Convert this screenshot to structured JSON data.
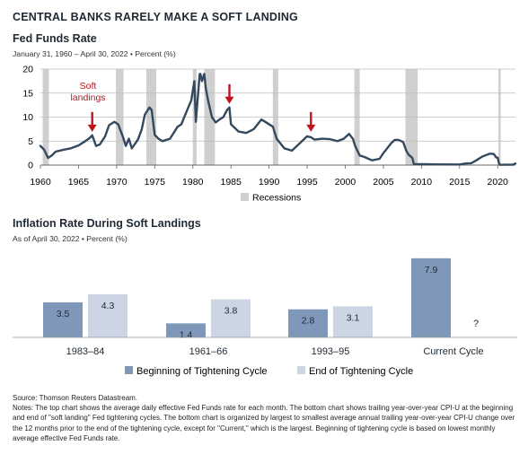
{
  "header": {
    "title": "CENTRAL BANKS RARELY MAKE A SOFT LANDING"
  },
  "colors": {
    "line": "#34495e",
    "recession": "#cfcfcf",
    "arrow": "#c0141c",
    "bar_begin": "#7f97b8",
    "bar_end": "#ccd5e3",
    "text": "#1f2933"
  },
  "chart_data": [
    {
      "type": "line",
      "title": "Fed Funds Rate",
      "subtitle": "January 31, 1960 – April 30, 2022 • Percent (%)",
      "xlim": [
        1960,
        2022.33
      ],
      "ylim": [
        0,
        20
      ],
      "x_ticks": [
        "1960",
        "1965",
        "1970",
        "1975",
        "1980",
        "1985",
        "1990",
        "1995",
        "2000",
        "2005",
        "2010",
        "2015",
        "2020"
      ],
      "y_ticks": [
        "0",
        "5",
        "10",
        "15",
        "20"
      ],
      "legend": {
        "label": "Recessions",
        "placement": "bottom-center"
      },
      "recessions": [
        [
          1960.3,
          1961.1
        ],
        [
          1969.9,
          1970.9
        ],
        [
          1973.9,
          1975.2
        ],
        [
          1980.0,
          1980.5
        ],
        [
          1981.5,
          1982.9
        ],
        [
          1990.5,
          1991.2
        ],
        [
          2001.2,
          2001.9
        ],
        [
          2007.9,
          2009.5
        ],
        [
          2020.1,
          2020.4
        ]
      ],
      "annotation": {
        "text_lines": [
          "Soft",
          "landings"
        ],
        "arrows_at": [
          [
            1966.8,
            6.2
          ],
          [
            1984.8,
            12.0
          ],
          [
            1995.5,
            6.2
          ]
        ]
      },
      "series": [
        {
          "x": [
            1960,
            1960.5,
            1961,
            1961.5,
            1962,
            1963,
            1964,
            1965,
            1966,
            1966.5,
            1966.8,
            1967.3,
            1967.8,
            1968.5,
            1969,
            1969.7,
            1970.2,
            1970.8,
            1971.2,
            1971.6,
            1972,
            1972.8,
            1973.3,
            1973.7,
            1974.3,
            1974.6,
            1975,
            1975.5,
            1976,
            1977,
            1978,
            1978.5,
            1979,
            1979.8,
            1980.2,
            1980.4,
            1980.6,
            1980.9,
            1981,
            1981.2,
            1981.5,
            1981.7,
            1982,
            1982.5,
            1983,
            1983.5,
            1984,
            1984.5,
            1984.8,
            1985,
            1986,
            1987,
            1988,
            1989,
            1989.5,
            1990.5,
            1991,
            1992,
            1993,
            1994,
            1995,
            1995.5,
            1996,
            1997,
            1998,
            1999,
            1999.8,
            2000.5,
            2001,
            2001.3,
            2001.9,
            2002.5,
            2003.5,
            2004.5,
            2005,
            2005.5,
            2006,
            2006.5,
            2007,
            2007.6,
            2008,
            2008.3,
            2008.8,
            2009,
            2010,
            2012,
            2015,
            2015.9,
            2016.5,
            2017,
            2018,
            2019,
            2019.5,
            2019.8,
            2020,
            2020.2,
            2020.3,
            2021,
            2022,
            2022.33
          ],
          "y": [
            4.0,
            3.2,
            1.5,
            2.0,
            2.8,
            3.2,
            3.5,
            4.1,
            5.1,
            5.7,
            6.2,
            4.0,
            4.3,
            6.0,
            8.3,
            9.0,
            8.5,
            6.0,
            4.0,
            5.5,
            3.5,
            5.3,
            7.5,
            10.5,
            12.0,
            11.5,
            6.3,
            5.5,
            5.0,
            5.5,
            8.0,
            8.5,
            10.5,
            13.5,
            17.5,
            9.0,
            13.0,
            19.0,
            19.0,
            17.5,
            19.0,
            16.0,
            13.5,
            10.0,
            8.9,
            9.5,
            10.0,
            11.5,
            12.0,
            8.5,
            7.0,
            6.7,
            7.5,
            9.5,
            9.0,
            8.0,
            5.5,
            3.5,
            3.0,
            4.5,
            6.0,
            5.8,
            5.3,
            5.5,
            5.4,
            5.0,
            5.5,
            6.5,
            5.5,
            4.0,
            2.0,
            1.7,
            1.0,
            1.3,
            2.5,
            3.5,
            4.5,
            5.25,
            5.25,
            4.8,
            3.0,
            2.2,
            1.5,
            0.2,
            0.18,
            0.15,
            0.13,
            0.35,
            0.4,
            0.8,
            1.8,
            2.4,
            2.3,
            1.6,
            1.55,
            0.25,
            0.05,
            0.08,
            0.1,
            0.33
          ]
        }
      ]
    },
    {
      "type": "bar",
      "title": "Inflation Rate During Soft Landings",
      "subtitle": "As of April 30, 2022 • Percent (%)",
      "categories": [
        "1983–84",
        "1961–66",
        "1993–95",
        "Current Cycle"
      ],
      "ylim": [
        0,
        8.6
      ],
      "legend": {
        "placement": "bottom-center"
      },
      "series": [
        {
          "name": "Beginning of Tightening Cycle",
          "values": [
            3.5,
            1.4,
            2.8,
            7.9
          ],
          "labels": [
            "3.5",
            "1.4",
            "2.8",
            "7.9"
          ]
        },
        {
          "name": "End of Tightening Cycle",
          "values": [
            4.3,
            3.8,
            3.1,
            null
          ],
          "labels": [
            "4.3",
            "3.8",
            "3.1",
            "?"
          ]
        }
      ]
    }
  ],
  "notes": {
    "source": "Source: Thomson Reuters Datastream.",
    "text": "Notes: The top chart shows the average daily effective Fed Funds rate for each month. The bottom chart shows trailing year-over-year CPI-U at the beginning and end of \"soft landing\" Fed tightening cycles. The bottom chart is organized by largest to smallest average annual trailing year-over-year CPI-U change over the 12 months prior to the end of the tightening cycle, except for \"Current,\" which is the largest. Beginning of tightening cycle is based on lowest monthly average effective Fed Funds rate."
  }
}
